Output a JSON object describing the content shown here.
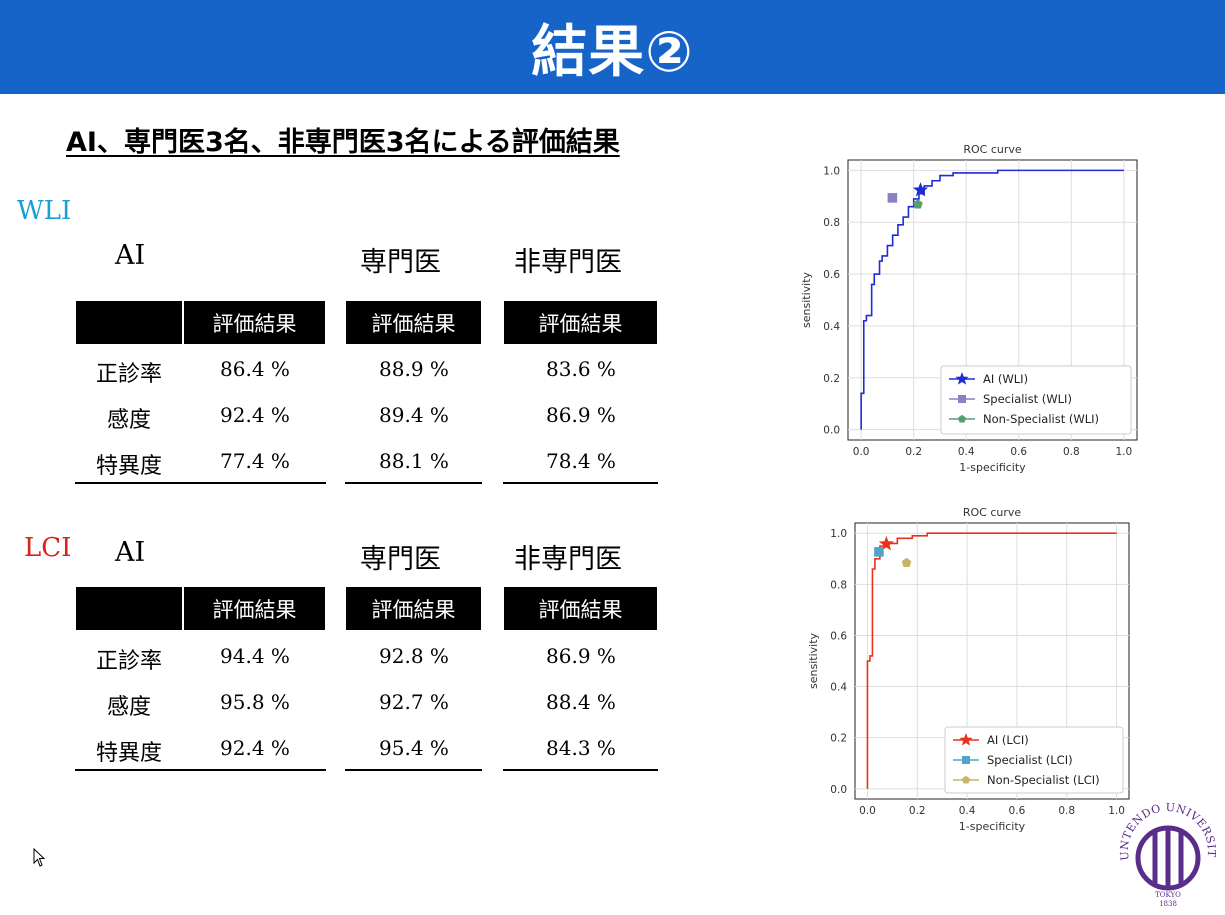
{
  "slide_title": "結果②",
  "subtitle": "AI、専門医3名、非専門医3名による評価結果",
  "sections": [
    {
      "label": "WLI",
      "label_color": "#17a0d8",
      "groups": [
        {
          "title": "AI",
          "header": "評価結果",
          "values": [
            "86.4 %",
            "92.4 %",
            "77.4 %"
          ]
        },
        {
          "title": "専門医",
          "header": "評価結果",
          "values": [
            "88.9 %",
            "89.4 %",
            "88.1 %"
          ]
        },
        {
          "title": "非専門医",
          "header": "評価結果",
          "values": [
            "83.6 %",
            "86.9 %",
            "78.4 %"
          ]
        }
      ],
      "row_labels": [
        "正診率",
        "感度",
        "特異度"
      ]
    },
    {
      "label": "LCI",
      "label_color": "#d8231b",
      "groups": [
        {
          "title": "AI",
          "header": "評価結果",
          "values": [
            "94.4 %",
            "95.8 %",
            "92.4 %"
          ]
        },
        {
          "title": "専門医",
          "header": "評価結果",
          "values": [
            "92.8 %",
            "92.7 %",
            "95.4 %"
          ]
        },
        {
          "title": "非専門医",
          "header": "評価結果",
          "values": [
            "86.9 %",
            "88.4 %",
            "84.3 %"
          ]
        }
      ],
      "row_labels": [
        "正診率",
        "感度",
        "特異度"
      ]
    }
  ],
  "chart_data": [
    {
      "type": "line",
      "title": "ROC curve",
      "xlabel": "1-specificity",
      "ylabel": "sensitivity",
      "xlim": [
        0,
        1
      ],
      "ylim": [
        0,
        1
      ],
      "xticks": [
        "0.0",
        "0.2",
        "0.4",
        "0.6",
        "0.8",
        "1.0"
      ],
      "yticks": [
        "0.0",
        "0.2",
        "0.4",
        "0.6",
        "0.8",
        "1.0"
      ],
      "grid": true,
      "legend_position": "bottom-right",
      "line_color": "#1f2bd6",
      "curve": {
        "x": [
          0,
          0,
          0.01,
          0.01,
          0.02,
          0.02,
          0.04,
          0.04,
          0.05,
          0.05,
          0.07,
          0.07,
          0.08,
          0.08,
          0.1,
          0.1,
          0.12,
          0.12,
          0.14,
          0.14,
          0.16,
          0.16,
          0.18,
          0.18,
          0.2,
          0.2,
          0.22,
          0.22,
          0.24,
          0.24,
          0.27,
          0.27,
          0.3,
          0.3,
          0.35,
          0.35,
          0.52,
          0.52,
          1.0
        ],
        "y": [
          0,
          0.14,
          0.14,
          0.42,
          0.42,
          0.44,
          0.44,
          0.56,
          0.56,
          0.6,
          0.6,
          0.65,
          0.65,
          0.67,
          0.67,
          0.71,
          0.71,
          0.75,
          0.75,
          0.79,
          0.79,
          0.82,
          0.82,
          0.86,
          0.86,
          0.89,
          0.89,
          0.91,
          0.91,
          0.94,
          0.94,
          0.96,
          0.96,
          0.98,
          0.98,
          0.99,
          0.99,
          1.0,
          1.0
        ]
      },
      "points": [
        {
          "name": "AI (WLI)",
          "x": 0.226,
          "y": 0.924,
          "marker": "star",
          "color": "#1f2bd6"
        },
        {
          "name": "Specialist (WLI)",
          "x": 0.119,
          "y": 0.894,
          "marker": "square",
          "color": "#8a80c4"
        },
        {
          "name": "Non-Specialist (WLI)",
          "x": 0.216,
          "y": 0.869,
          "marker": "pentagon",
          "color": "#5a9e6f"
        }
      ]
    },
    {
      "type": "line",
      "title": "ROC curve",
      "xlabel": "1-specificity",
      "ylabel": "sensitivity",
      "xlim": [
        0,
        1
      ],
      "ylim": [
        0,
        1
      ],
      "xticks": [
        "0.0",
        "0.2",
        "0.4",
        "0.6",
        "0.8",
        "1.0"
      ],
      "yticks": [
        "0.0",
        "0.2",
        "0.4",
        "0.6",
        "0.8",
        "1.0"
      ],
      "grid": true,
      "legend_position": "bottom-right",
      "line_color": "#e8321e",
      "curve": {
        "x": [
          0,
          0,
          0.01,
          0.01,
          0.02,
          0.02,
          0.03,
          0.03,
          0.05,
          0.05,
          0.08,
          0.08,
          0.12,
          0.12,
          0.18,
          0.18,
          0.24,
          0.24,
          1.0
        ],
        "y": [
          0,
          0.5,
          0.5,
          0.52,
          0.52,
          0.86,
          0.86,
          0.9,
          0.9,
          0.95,
          0.95,
          0.96,
          0.96,
          0.98,
          0.98,
          0.99,
          0.99,
          1.0,
          1.0
        ]
      },
      "points": [
        {
          "name": "AI (LCI)",
          "x": 0.076,
          "y": 0.958,
          "marker": "star",
          "color": "#e8321e"
        },
        {
          "name": "Specialist (LCI)",
          "x": 0.046,
          "y": 0.927,
          "marker": "square",
          "color": "#4fa5c8"
        },
        {
          "name": "Non-Specialist (LCI)",
          "x": 0.157,
          "y": 0.884,
          "marker": "pentagon",
          "color": "#c9b46a"
        }
      ]
    }
  ],
  "logo": {
    "text_top": "JUNTENDO UNIVERSITY",
    "text_bottom": "TOKYO",
    "year": "1838",
    "color": "#5b2d8a"
  }
}
